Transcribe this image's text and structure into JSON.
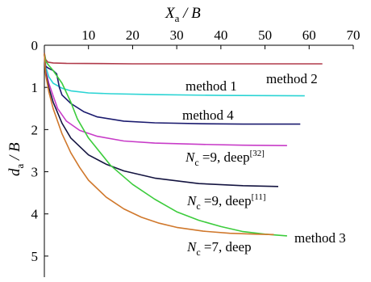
{
  "chart_data": {
    "type": "line",
    "xlabel": {
      "main": "X",
      "sub": "a",
      "rest": " / B"
    },
    "ylabel": {
      "main": "d",
      "sub": "a",
      "rest": " / B"
    },
    "xlim": [
      0,
      70
    ],
    "ylim": [
      0,
      5.5
    ],
    "y_inverted": true,
    "x_axis_position": "top",
    "xticks": [
      "0",
      "10",
      "20",
      "30",
      "40",
      "50",
      "60",
      "70"
    ],
    "yticks": [
      "0",
      "1",
      "2",
      "3",
      "4",
      "5"
    ],
    "series": [
      {
        "name": "method 2",
        "color": "#b03a4a",
        "x": [
          0,
          0.3,
          0.8,
          2,
          5,
          20,
          40,
          63
        ],
        "y": [
          0.18,
          0.34,
          0.4,
          0.42,
          0.43,
          0.44,
          0.44,
          0.44
        ]
      },
      {
        "name": "method 1",
        "color": "#2bd4d4",
        "x": [
          0,
          0.3,
          1,
          2,
          4,
          6,
          10,
          15,
          25,
          40,
          59
        ],
        "y": [
          0.2,
          0.5,
          0.75,
          0.9,
          1.02,
          1.08,
          1.13,
          1.15,
          1.17,
          1.19,
          1.2
        ]
      },
      {
        "name": "method 4",
        "color": "#1a1a6e",
        "x": [
          0,
          0.3,
          1,
          2,
          2.8,
          3.4,
          4,
          6,
          9,
          12,
          18,
          25,
          35,
          45,
          58
        ],
        "y": [
          0.2,
          0.5,
          0.55,
          0.6,
          0.68,
          1.0,
          1.18,
          1.38,
          1.58,
          1.7,
          1.8,
          1.84,
          1.86,
          1.87,
          1.87
        ]
      },
      {
        "name": "N_c=9, deep [32]",
        "color": "#c83cc8",
        "x": [
          0,
          0.3,
          1,
          2,
          3,
          5,
          8,
          12,
          18,
          25,
          35,
          45,
          55
        ],
        "y": [
          0.2,
          0.6,
          0.9,
          1.2,
          1.5,
          1.8,
          2.02,
          2.16,
          2.27,
          2.32,
          2.35,
          2.37,
          2.38
        ]
      },
      {
        "name": "N_c=9, deep [11]",
        "color": "#141440",
        "x": [
          0,
          0.3,
          1,
          2,
          4,
          6,
          10,
          14,
          18,
          25,
          35,
          45,
          53
        ],
        "y": [
          0.2,
          0.65,
          1.0,
          1.35,
          1.85,
          2.2,
          2.6,
          2.82,
          2.98,
          3.15,
          3.28,
          3.33,
          3.35
        ]
      },
      {
        "name": "method 3",
        "color": "#3ccc3c",
        "x": [
          0,
          0.3,
          1,
          2,
          4,
          6,
          7.5,
          10,
          15,
          20,
          25,
          30,
          35,
          40,
          45,
          50,
          55
        ],
        "y": [
          0.2,
          0.38,
          0.48,
          0.6,
          0.9,
          1.35,
          1.75,
          2.2,
          2.85,
          3.3,
          3.65,
          3.95,
          4.15,
          4.3,
          4.42,
          4.48,
          4.52
        ]
      },
      {
        "name": "N_c=7, deep",
        "color": "#d0782c",
        "x": [
          0,
          0.3,
          1,
          2,
          4,
          6,
          8,
          10,
          14,
          18,
          22,
          26,
          30,
          36,
          42,
          48,
          52
        ],
        "y": [
          0.2,
          0.7,
          1.1,
          1.5,
          2.1,
          2.55,
          2.9,
          3.2,
          3.6,
          3.88,
          4.08,
          4.22,
          4.32,
          4.41,
          4.46,
          4.48,
          4.49
        ]
      }
    ],
    "annotations": {
      "method2": "method 2",
      "method1": "method 1",
      "method4": "method 4",
      "method3": "method 3",
      "nc9a_prefix": "N",
      "nc9a_sub": "c",
      "nc9a_text": " =9, deep",
      "nc9a_ref": "[32]",
      "nc9b_prefix": "N",
      "nc9b_sub": "c",
      "nc9b_text": " =9, deep",
      "nc9b_ref": "[11]",
      "nc7_prefix": "N",
      "nc7_sub": "c",
      "nc7_text": " =7, deep"
    }
  }
}
